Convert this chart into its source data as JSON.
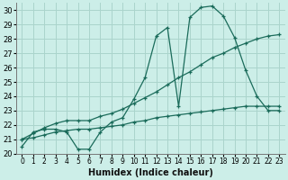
{
  "xlabel": "Humidex (Indice chaleur)",
  "background_color": "#cceee8",
  "grid_color": "#aad4cc",
  "line_color": "#1a6b5a",
  "xlim": [
    -0.5,
    23.5
  ],
  "ylim": [
    20,
    30.5
  ],
  "xticks": [
    0,
    1,
    2,
    3,
    4,
    5,
    6,
    7,
    8,
    9,
    10,
    11,
    12,
    13,
    14,
    15,
    16,
    17,
    18,
    19,
    20,
    21,
    22,
    23
  ],
  "yticks": [
    20,
    21,
    22,
    23,
    24,
    25,
    26,
    27,
    28,
    29,
    30
  ],
  "line1_x": [
    0,
    1,
    2,
    3,
    4,
    5,
    6,
    7,
    8,
    9,
    10,
    11,
    12,
    13,
    14,
    15,
    16,
    17,
    18,
    19,
    20,
    21,
    22,
    23
  ],
  "line1_y": [
    20.5,
    21.5,
    21.7,
    21.7,
    21.5,
    20.3,
    20.3,
    21.5,
    22.2,
    22.5,
    23.8,
    25.3,
    28.2,
    28.8,
    23.3,
    29.5,
    30.2,
    30.3,
    29.6,
    28.1,
    25.8,
    24.0,
    23.0,
    23.0
  ],
  "line2_x": [
    0,
    1,
    2,
    3,
    4,
    5,
    6,
    7,
    8,
    9,
    10,
    11,
    12,
    13,
    14,
    15,
    16,
    17,
    18,
    19,
    20,
    21,
    22,
    23
  ],
  "line2_y": [
    21.0,
    21.4,
    21.8,
    22.1,
    22.3,
    22.3,
    22.3,
    22.6,
    22.8,
    23.1,
    23.5,
    23.9,
    24.3,
    24.8,
    25.3,
    25.7,
    26.2,
    26.7,
    27.0,
    27.4,
    27.7,
    28.0,
    28.2,
    28.3
  ],
  "line3_x": [
    0,
    1,
    2,
    3,
    4,
    5,
    6,
    7,
    8,
    9,
    10,
    11,
    12,
    13,
    14,
    15,
    16,
    17,
    18,
    19,
    20,
    21,
    22,
    23
  ],
  "line3_y": [
    21.0,
    21.1,
    21.3,
    21.5,
    21.6,
    21.7,
    21.7,
    21.8,
    21.9,
    22.0,
    22.2,
    22.3,
    22.5,
    22.6,
    22.7,
    22.8,
    22.9,
    23.0,
    23.1,
    23.2,
    23.3,
    23.3,
    23.3,
    23.3
  ],
  "marker": "+",
  "marker_size": 3,
  "linewidth": 0.9
}
